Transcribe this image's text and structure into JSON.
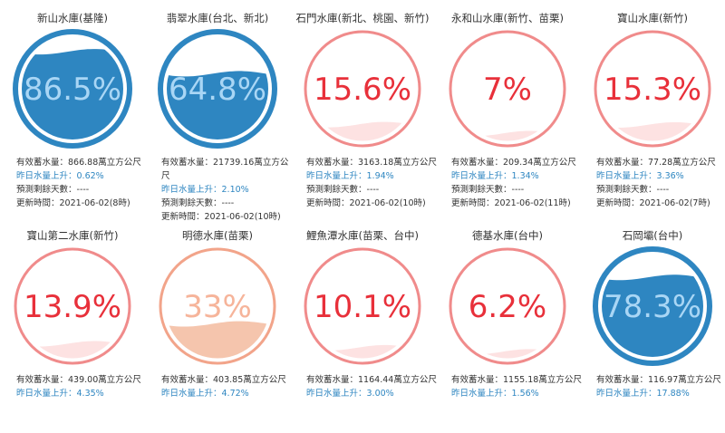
{
  "labels": {
    "storage": "有效蓄水量：",
    "unit": "萬立方公尺",
    "rise": "昨日水量上升：",
    "days": "預測剩餘天數：",
    "updated": "更新時間："
  },
  "reservoirs": [
    {
      "name": "新山水庫(基隆)",
      "percent": "86.5%",
      "fill": 0.865,
      "storage": "866.88",
      "rise": "0.62%",
      "days": "----",
      "updated": "2021-06-02(8時)",
      "style": "blue"
    },
    {
      "name": "翡翠水庫(台北、新北)",
      "percent": "64.8%",
      "fill": 0.648,
      "storage": "21739.16",
      "rise": "2.10%",
      "days": "----",
      "updated": "2021-06-02(10時)",
      "style": "blue"
    },
    {
      "name": "石門水庫(新北、桃園、新竹)",
      "percent": "15.6%",
      "fill": 0.156,
      "storage": "3163.18",
      "rise": "1.94%",
      "days": "----",
      "updated": "2021-06-02(10時)",
      "style": "red"
    },
    {
      "name": "永和山水庫(新竹、苗栗)",
      "percent": "7%",
      "fill": 0.07,
      "storage": "209.34",
      "rise": "1.34%",
      "days": "----",
      "updated": "2021-06-02(11時)",
      "style": "red"
    },
    {
      "name": "寶山水庫(新竹)",
      "percent": "15.3%",
      "fill": 0.153,
      "storage": "77.28",
      "rise": "3.36%",
      "days": "----",
      "updated": "2021-06-02(7時)",
      "style": "red"
    },
    {
      "name": "寶山第二水庫(新竹)",
      "percent": "13.9%",
      "fill": 0.139,
      "storage": "439.00",
      "rise": "4.35%",
      "days": "",
      "updated": "",
      "style": "red"
    },
    {
      "name": "明德水庫(苗栗)",
      "percent": "33%",
      "fill": 0.33,
      "storage": "403.85",
      "rise": "4.72%",
      "days": "",
      "updated": "",
      "style": "orange"
    },
    {
      "name": "鯉魚潭水庫(苗栗、台中)",
      "percent": "10.1%",
      "fill": 0.101,
      "storage": "1164.44",
      "rise": "3.00%",
      "days": "",
      "updated": "",
      "style": "red"
    },
    {
      "name": "德基水庫(台中)",
      "percent": "6.2%",
      "fill": 0.062,
      "storage": "1155.18",
      "rise": "1.56%",
      "days": "",
      "updated": "",
      "style": "red"
    },
    {
      "name": "石岡壩(台中)",
      "percent": "78.3%",
      "fill": 0.783,
      "storage": "116.97",
      "rise": "17.88%",
      "days": "",
      "updated": "",
      "style": "blue"
    }
  ],
  "colors": {
    "blue": {
      "ring": "#2e86c1",
      "wave": "#2e86c1",
      "textLow": "#2e86c1",
      "textHigh": "#a9d6f5",
      "ringWidth": 6
    },
    "red": {
      "ring": "#f08b8b",
      "wave": "#fde2e2",
      "textLow": "#e8303a",
      "textHigh": "#e8303a",
      "ringWidth": 3
    },
    "orange": {
      "ring": "#f2a48a",
      "wave": "#f5c5ad",
      "textLow": "#f6b49a",
      "textHigh": "#ffffff",
      "ringWidth": 3
    }
  }
}
